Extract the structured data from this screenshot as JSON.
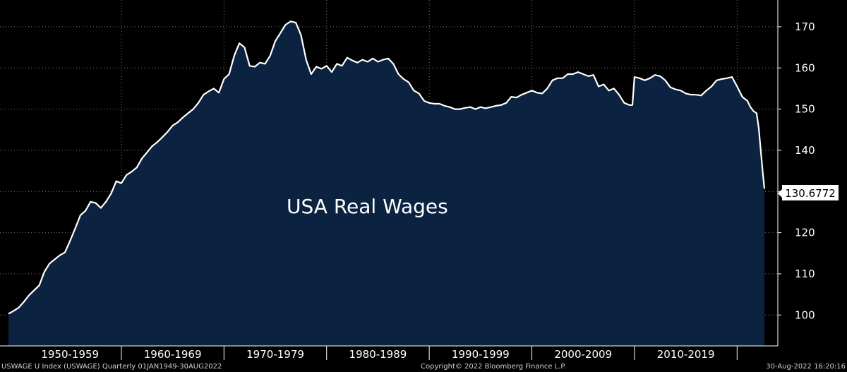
{
  "chart_data": {
    "type": "area",
    "annotation": "USA Real Wages",
    "last_value_label": "130.6772",
    "colors": {
      "background": "#000000",
      "fill": "#0b2341",
      "line": "#ffffff",
      "grid": "#7a7a7a"
    },
    "grid": true,
    "y_axis": {
      "position": "right",
      "range": [
        92.5,
        176.5
      ],
      "ticks": [
        100,
        110,
        120,
        130,
        140,
        150,
        160,
        170
      ]
    },
    "x_axis": {
      "range": [
        1949.0,
        2022.66
      ],
      "decade_labels": [
        {
          "label": "1950-1959",
          "start": 1950,
          "end": 1960
        },
        {
          "label": "1960-1969",
          "start": 1960,
          "end": 1970
        },
        {
          "label": "1970-1979",
          "start": 1970,
          "end": 1980
        },
        {
          "label": "1980-1989",
          "start": 1980,
          "end": 1990
        },
        {
          "label": "1990-1999",
          "start": 1990,
          "end": 2000
        },
        {
          "label": "2000-2009",
          "start": 2000,
          "end": 2010
        },
        {
          "label": "2010-2019",
          "start": 2010,
          "end": 2020
        }
      ],
      "separators": [
        1960,
        1970,
        1980,
        1990,
        2000,
        2010,
        2020
      ]
    },
    "series": [
      {
        "points": [
          [
            1949.0,
            100.3
          ],
          [
            1949.5,
            101.0
          ],
          [
            1950.0,
            101.8
          ],
          [
            1950.5,
            103.2
          ],
          [
            1951.0,
            104.8
          ],
          [
            1951.5,
            106.0
          ],
          [
            1952.0,
            107.2
          ],
          [
            1952.5,
            110.5
          ],
          [
            1953.0,
            112.5
          ],
          [
            1953.5,
            113.5
          ],
          [
            1954.0,
            114.5
          ],
          [
            1954.5,
            115.2
          ],
          [
            1955.0,
            118.0
          ],
          [
            1955.5,
            121.0
          ],
          [
            1956.0,
            124.2
          ],
          [
            1956.5,
            125.3
          ],
          [
            1957.0,
            127.5
          ],
          [
            1957.5,
            127.2
          ],
          [
            1958.0,
            126.0
          ],
          [
            1958.5,
            127.5
          ],
          [
            1959.0,
            129.5
          ],
          [
            1959.5,
            132.5
          ],
          [
            1960.0,
            132.0
          ],
          [
            1960.5,
            134.0
          ],
          [
            1961.0,
            134.8
          ],
          [
            1961.5,
            135.8
          ],
          [
            1962.0,
            138.0
          ],
          [
            1962.5,
            139.5
          ],
          [
            1963.0,
            141.0
          ],
          [
            1963.5,
            142.0
          ],
          [
            1964.0,
            143.2
          ],
          [
            1964.5,
            144.5
          ],
          [
            1965.0,
            146.0
          ],
          [
            1965.5,
            146.8
          ],
          [
            1966.0,
            148.0
          ],
          [
            1966.5,
            149.0
          ],
          [
            1967.0,
            150.0
          ],
          [
            1967.5,
            151.5
          ],
          [
            1968.0,
            153.5
          ],
          [
            1968.5,
            154.3
          ],
          [
            1969.0,
            155.0
          ],
          [
            1969.5,
            154.0
          ],
          [
            1970.0,
            157.3
          ],
          [
            1970.5,
            158.5
          ],
          [
            1971.0,
            163.0
          ],
          [
            1971.5,
            166.0
          ],
          [
            1972.0,
            165.0
          ],
          [
            1972.5,
            160.5
          ],
          [
            1973.0,
            160.3
          ],
          [
            1973.5,
            161.3
          ],
          [
            1974.0,
            161.0
          ],
          [
            1974.5,
            163.0
          ],
          [
            1975.0,
            166.5
          ],
          [
            1975.5,
            168.5
          ],
          [
            1976.0,
            170.5
          ],
          [
            1976.5,
            171.3
          ],
          [
            1977.0,
            171.0
          ],
          [
            1977.5,
            168.0
          ],
          [
            1978.0,
            162.0
          ],
          [
            1978.5,
            158.5
          ],
          [
            1979.0,
            160.3
          ],
          [
            1979.5,
            159.8
          ],
          [
            1980.0,
            160.5
          ],
          [
            1980.5,
            159.0
          ],
          [
            1981.0,
            161.0
          ],
          [
            1981.5,
            160.5
          ],
          [
            1982.0,
            162.5
          ],
          [
            1982.5,
            161.8
          ],
          [
            1983.0,
            161.3
          ],
          [
            1983.5,
            162.0
          ],
          [
            1984.0,
            161.5
          ],
          [
            1984.5,
            162.3
          ],
          [
            1985.0,
            161.5
          ],
          [
            1985.5,
            162.0
          ],
          [
            1986.0,
            162.3
          ],
          [
            1986.5,
            161.0
          ],
          [
            1987.0,
            158.5
          ],
          [
            1987.5,
            157.3
          ],
          [
            1988.0,
            156.5
          ],
          [
            1988.5,
            154.5
          ],
          [
            1989.0,
            153.8
          ],
          [
            1989.5,
            152.0
          ],
          [
            1990.0,
            151.5
          ],
          [
            1990.5,
            151.3
          ],
          [
            1991.0,
            151.3
          ],
          [
            1991.5,
            150.8
          ],
          [
            1992.0,
            150.5
          ],
          [
            1992.5,
            150.0
          ],
          [
            1993.0,
            150.0
          ],
          [
            1993.5,
            150.3
          ],
          [
            1994.0,
            150.5
          ],
          [
            1994.5,
            150.0
          ],
          [
            1995.0,
            150.5
          ],
          [
            1995.5,
            150.2
          ],
          [
            1996.0,
            150.5
          ],
          [
            1996.5,
            150.8
          ],
          [
            1997.0,
            151.0
          ],
          [
            1997.5,
            151.5
          ],
          [
            1998.0,
            153.0
          ],
          [
            1998.5,
            152.8
          ],
          [
            1999.0,
            153.5
          ],
          [
            1999.5,
            154.0
          ],
          [
            2000.0,
            154.5
          ],
          [
            2000.5,
            154.0
          ],
          [
            2001.0,
            153.8
          ],
          [
            2001.5,
            155.0
          ],
          [
            2002.0,
            157.0
          ],
          [
            2002.5,
            157.5
          ],
          [
            2003.0,
            157.5
          ],
          [
            2003.5,
            158.5
          ],
          [
            2004.0,
            158.5
          ],
          [
            2004.5,
            159.0
          ],
          [
            2005.0,
            158.5
          ],
          [
            2005.5,
            158.0
          ],
          [
            2006.0,
            158.3
          ],
          [
            2006.5,
            155.5
          ],
          [
            2007.0,
            156.0
          ],
          [
            2007.5,
            154.5
          ],
          [
            2008.0,
            155.0
          ],
          [
            2008.5,
            153.5
          ],
          [
            2009.0,
            151.5
          ],
          [
            2009.5,
            151.0
          ],
          [
            2009.8,
            151.0
          ],
          [
            2010.0,
            157.8
          ],
          [
            2010.5,
            157.5
          ],
          [
            2011.0,
            157.0
          ],
          [
            2011.5,
            157.5
          ],
          [
            2012.0,
            158.3
          ],
          [
            2012.5,
            158.0
          ],
          [
            2013.0,
            157.0
          ],
          [
            2013.5,
            155.3
          ],
          [
            2014.0,
            154.8
          ],
          [
            2014.5,
            154.5
          ],
          [
            2015.0,
            153.8
          ],
          [
            2015.5,
            153.5
          ],
          [
            2016.0,
            153.5
          ],
          [
            2016.5,
            153.3
          ],
          [
            2017.0,
            154.5
          ],
          [
            2017.5,
            155.5
          ],
          [
            2018.0,
            157.0
          ],
          [
            2018.5,
            157.3
          ],
          [
            2019.0,
            157.5
          ],
          [
            2019.5,
            157.8
          ],
          [
            2020.0,
            155.5
          ],
          [
            2020.5,
            153.0
          ],
          [
            2021.0,
            152.0
          ],
          [
            2021.3,
            150.5
          ],
          [
            2021.6,
            149.5
          ],
          [
            2021.9,
            149.0
          ],
          [
            2022.1,
            145.5
          ],
          [
            2022.3,
            140.0
          ],
          [
            2022.5,
            134.5
          ],
          [
            2022.66,
            130.6772
          ]
        ]
      }
    ]
  },
  "footer": {
    "left": "USWAGE U Index (USWAGE)  Quarterly 01JAN1949-30AUG2022",
    "center": "Copyright© 2022 Bloomberg Finance L.P.",
    "right": "30-Aug-2022 16:20:16"
  }
}
